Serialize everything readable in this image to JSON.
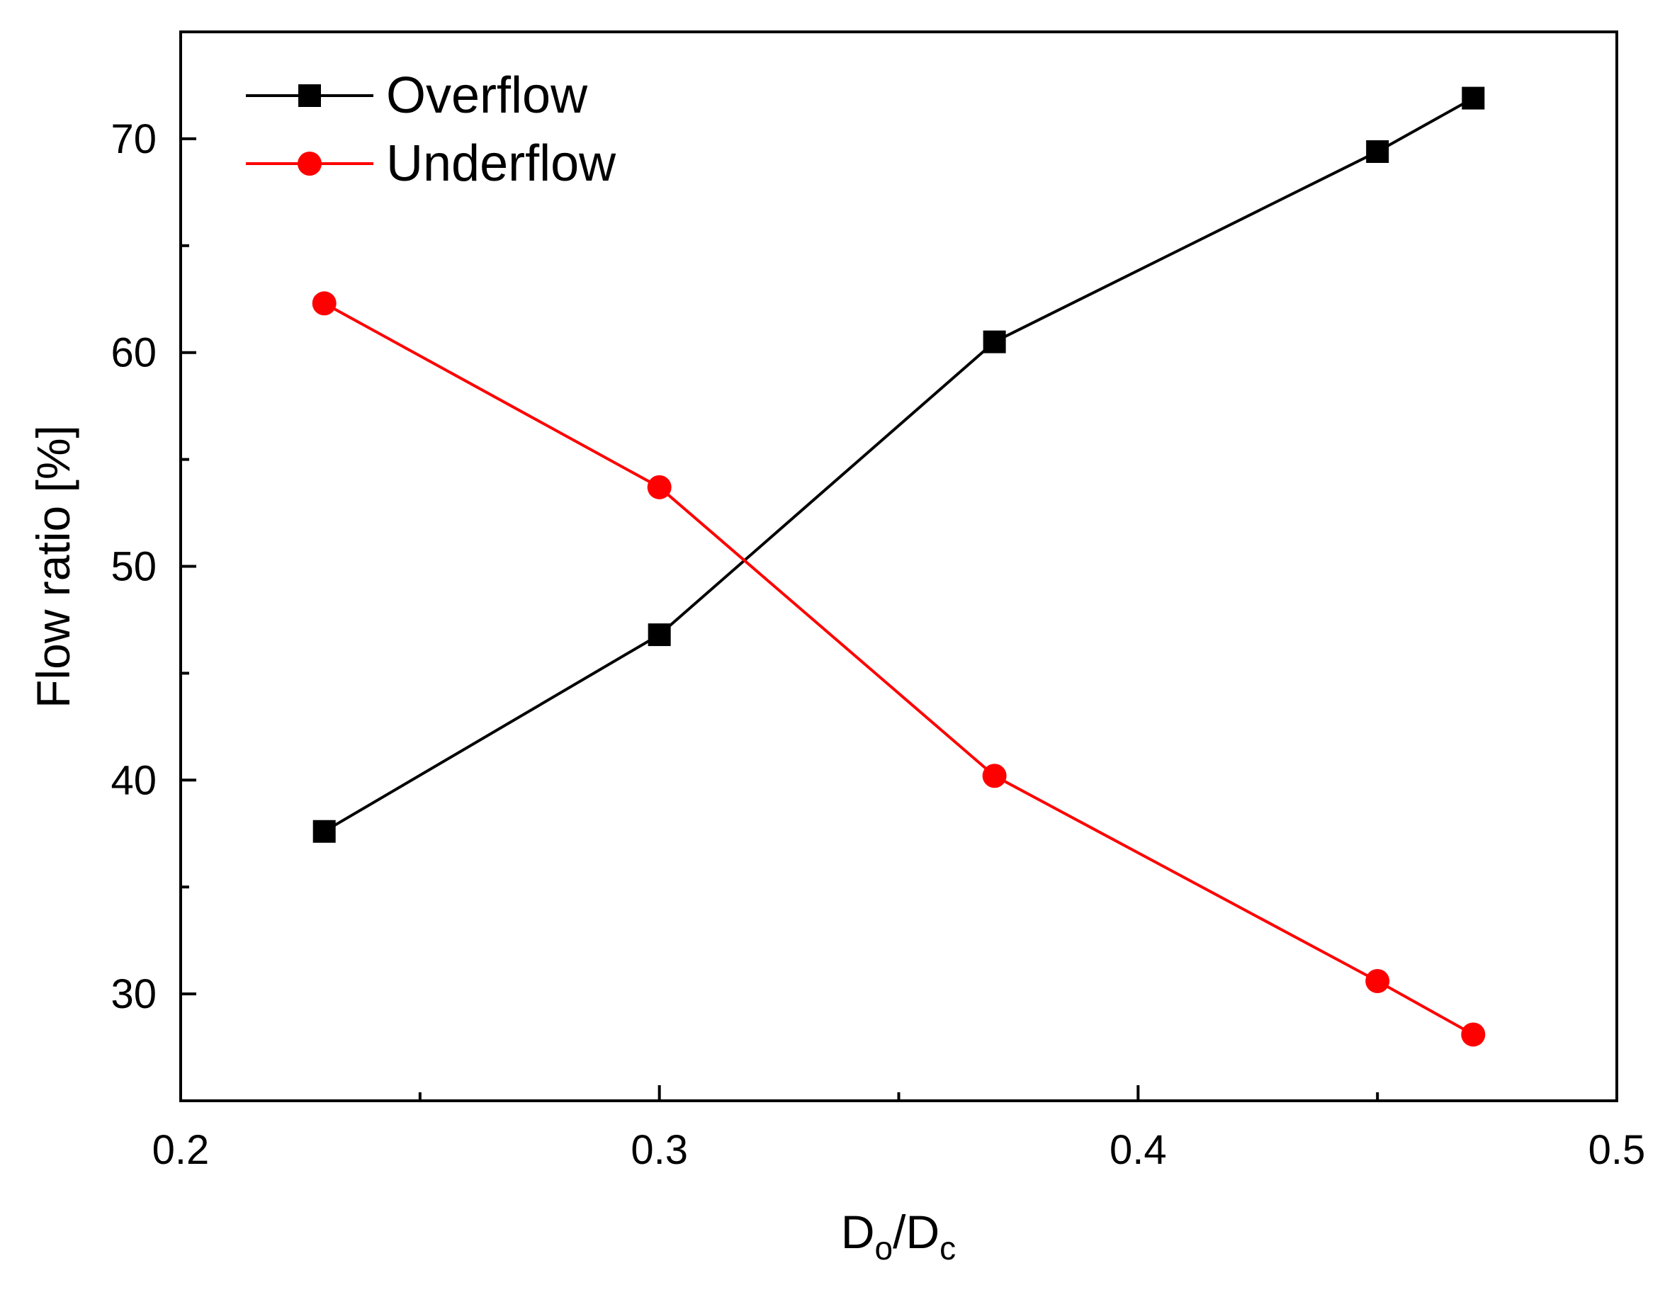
{
  "chart_data": {
    "type": "line",
    "title": "",
    "xlabel": {
      "main": "D",
      "sub1": "o",
      "sep": "/D",
      "sub2": "c"
    },
    "ylabel": "Flow ratio [%]",
    "xlim": [
      0.2,
      0.5
    ],
    "ylim": [
      25,
      75
    ],
    "x_ticks": [
      0.2,
      0.3,
      0.4,
      0.5
    ],
    "x_tick_labels": [
      "0.2",
      "0.3",
      "0.4",
      "0.5"
    ],
    "x_minor_ticks": [
      0.25,
      0.35,
      0.45
    ],
    "y_ticks": [
      30,
      40,
      50,
      60,
      70
    ],
    "y_tick_labels": [
      "30",
      "40",
      "50",
      "60",
      "70"
    ],
    "y_minor_ticks": [
      35,
      45,
      55,
      65
    ],
    "grid": false,
    "legend_position": "top-left",
    "x": [
      0.23,
      0.3,
      0.37,
      0.45,
      0.47
    ],
    "series": [
      {
        "name": "Overflow",
        "color": "#000000",
        "marker": "square",
        "values": [
          37.6,
          46.8,
          60.5,
          69.4,
          71.9
        ]
      },
      {
        "name": "Underflow",
        "color": "#ff0000",
        "marker": "circle",
        "values": [
          62.3,
          53.7,
          40.2,
          30.6,
          28.1
        ]
      }
    ]
  }
}
